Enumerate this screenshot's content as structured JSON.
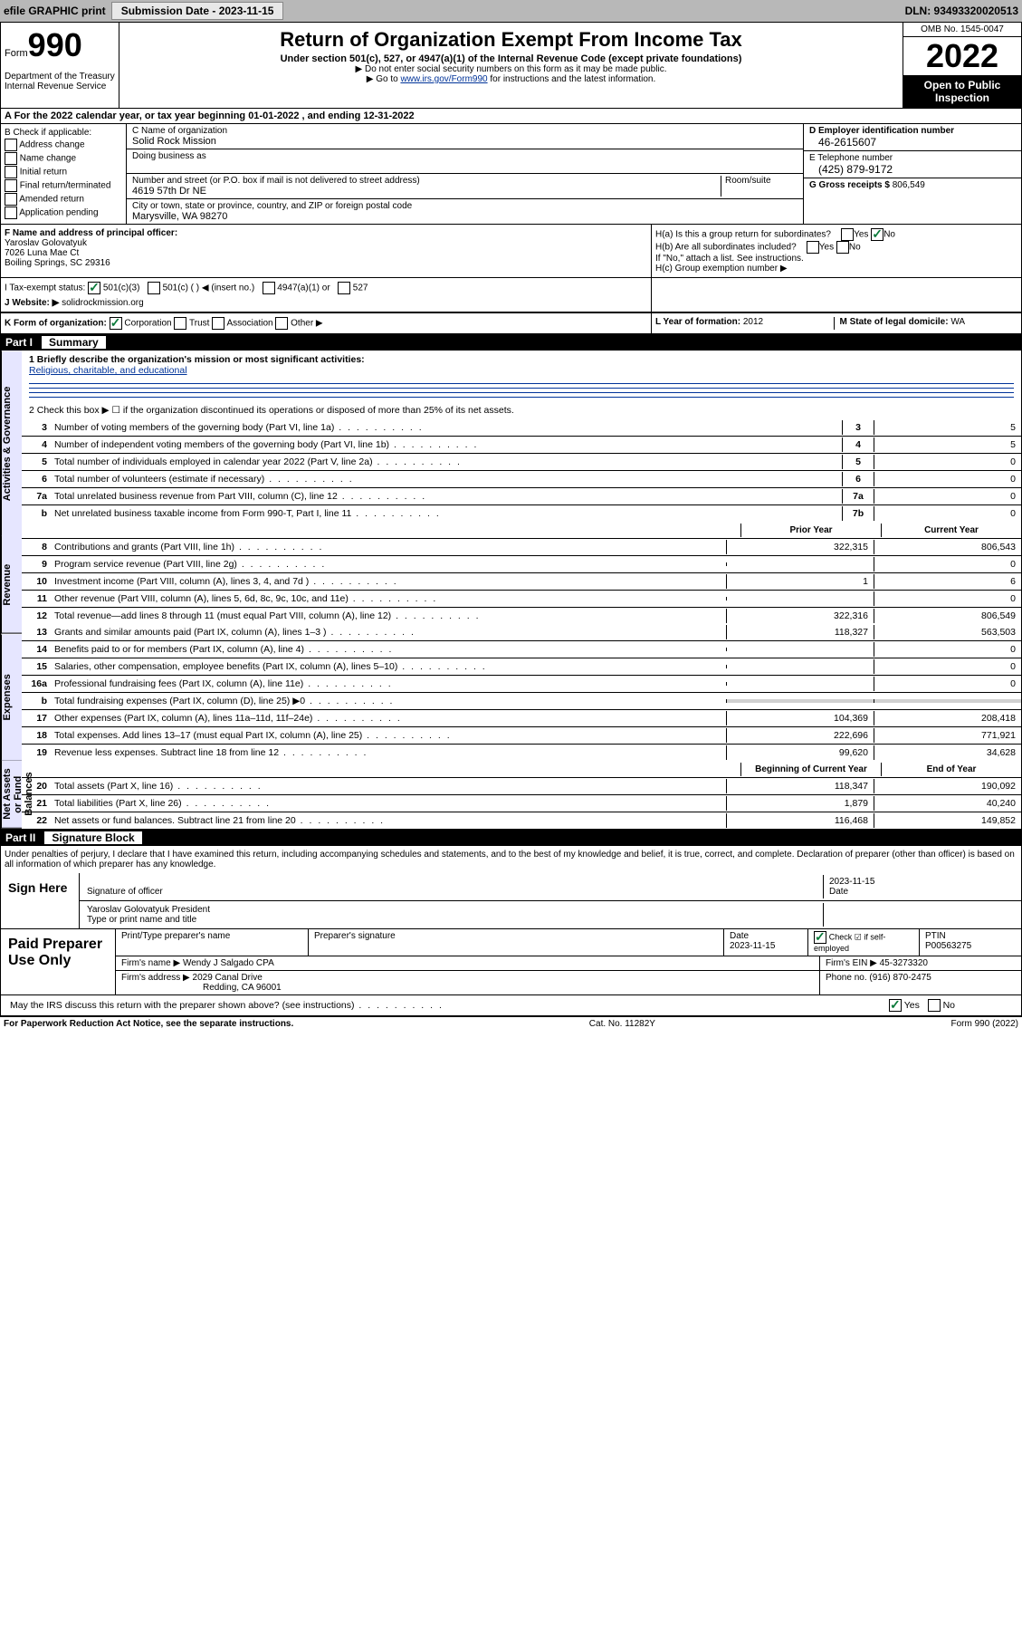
{
  "topbar": {
    "efile_label": "efile GRAPHIC print",
    "submission_label": "Submission Date - 2023-11-15",
    "dln_label": "DLN: 93493320020513"
  },
  "header": {
    "form_prefix": "Form",
    "form_number": "990",
    "title": "Return of Organization Exempt From Income Tax",
    "subtitle": "Under section 501(c), 527, or 4947(a)(1) of the Internal Revenue Code (except private foundations)",
    "note1": "▶ Do not enter social security numbers on this form as it may be made public.",
    "note2_pre": "▶ Go to ",
    "note2_link": "www.irs.gov/Form990",
    "note2_post": " for instructions and the latest information.",
    "omb": "OMB No. 1545-0047",
    "year": "2022",
    "inspection": "Open to Public Inspection",
    "dept": "Department of the Treasury Internal Revenue Service"
  },
  "sectionA": {
    "text": "A  For the 2022 calendar year, or tax year beginning 01-01-2022   , and ending 12-31-2022"
  },
  "boxB": {
    "label": "B Check if applicable:",
    "items": [
      "Address change",
      "Name change",
      "Initial return",
      "Final return/terminated",
      "Amended return",
      "Application pending"
    ]
  },
  "boxC": {
    "name_label": "C Name of organization",
    "name": "Solid Rock Mission",
    "dba_label": "Doing business as",
    "dba": "",
    "addr_label": "Number and street (or P.O. box if mail is not delivered to street address)",
    "addr": "4619 57th Dr NE",
    "suite_label": "Room/suite",
    "city_label": "City or town, state or province, country, and ZIP or foreign postal code",
    "city": "Marysville, WA  98270"
  },
  "boxD": {
    "ein_label": "D Employer identification number",
    "ein": "46-2615607",
    "phone_label": "E Telephone number",
    "phone": "(425) 879-9172",
    "gross_label": "G Gross receipts $",
    "gross": "806,549"
  },
  "boxF": {
    "label": "F  Name and address of principal officer:",
    "name": "Yaroslav Golovatyuk",
    "addr1": "7026 Luna Mae Ct",
    "addr2": "Boiling Springs, SC  29316"
  },
  "boxH": {
    "ha_label": "H(a)  Is this a group return for subordinates?",
    "hb_label": "H(b)  Are all subordinates included?",
    "hb_note": "If \"No,\" attach a list. See instructions.",
    "hc_label": "H(c)  Group exemption number ▶"
  },
  "boxI": {
    "label": "I     Tax-exempt status:",
    "opt1": "501(c)(3)",
    "opt2": "501(c) (  ) ◀ (insert no.)",
    "opt3": "4947(a)(1) or",
    "opt4": "527"
  },
  "boxJ": {
    "label": "J     Website: ▶",
    "value": "solidrockmission.org"
  },
  "boxK": {
    "label": "K Form of organization:",
    "opts": [
      "Corporation",
      "Trust",
      "Association",
      "Other ▶"
    ]
  },
  "boxL": {
    "label": "L Year of formation:",
    "value": "2012"
  },
  "boxM": {
    "label": "M State of legal domicile:",
    "value": "WA"
  },
  "part1": {
    "label": "Part I",
    "title": "Summary",
    "tabs": [
      "Activities & Governance",
      "Revenue",
      "Expenses",
      "Net Assets or Fund Balances"
    ],
    "q1_label": "1   Briefly describe the organization's mission or most significant activities:",
    "q1_value": "Religious, charitable, and educational",
    "q2": "2     Check this box ▶ ☐  if the organization discontinued its operations or disposed of more than 25% of its net assets.",
    "rows_ag": [
      {
        "n": "3",
        "desc": "Number of voting members of the governing body (Part VI, line 1a)",
        "box": "3",
        "val": "5"
      },
      {
        "n": "4",
        "desc": "Number of independent voting members of the governing body (Part VI, line 1b)",
        "box": "4",
        "val": "5"
      },
      {
        "n": "5",
        "desc": "Total number of individuals employed in calendar year 2022 (Part V, line 2a)",
        "box": "5",
        "val": "0"
      },
      {
        "n": "6",
        "desc": "Total number of volunteers (estimate if necessary)",
        "box": "6",
        "val": "0"
      },
      {
        "n": "7a",
        "desc": "Total unrelated business revenue from Part VIII, column (C), line 12",
        "box": "7a",
        "val": "0"
      },
      {
        "n": "b",
        "desc": "Net unrelated business taxable income from Form 990-T, Part I, line 11",
        "box": "7b",
        "val": "0"
      }
    ],
    "col_headers": {
      "prior": "Prior Year",
      "current": "Current Year",
      "boy": "Beginning of Current Year",
      "eoy": "End of Year"
    },
    "rows_rev": [
      {
        "n": "8",
        "desc": "Contributions and grants (Part VIII, line 1h)",
        "p": "322,315",
        "c": "806,543"
      },
      {
        "n": "9",
        "desc": "Program service revenue (Part VIII, line 2g)",
        "p": "",
        "c": "0"
      },
      {
        "n": "10",
        "desc": "Investment income (Part VIII, column (A), lines 3, 4, and 7d )",
        "p": "1",
        "c": "6"
      },
      {
        "n": "11",
        "desc": "Other revenue (Part VIII, column (A), lines 5, 6d, 8c, 9c, 10c, and 11e)",
        "p": "",
        "c": "0"
      },
      {
        "n": "12",
        "desc": "Total revenue—add lines 8 through 11 (must equal Part VIII, column (A), line 12)",
        "p": "322,316",
        "c": "806,549"
      }
    ],
    "rows_exp": [
      {
        "n": "13",
        "desc": "Grants and similar amounts paid (Part IX, column (A), lines 1–3 )",
        "p": "118,327",
        "c": "563,503"
      },
      {
        "n": "14",
        "desc": "Benefits paid to or for members (Part IX, column (A), line 4)",
        "p": "",
        "c": "0"
      },
      {
        "n": "15",
        "desc": "Salaries, other compensation, employee benefits (Part IX, column (A), lines 5–10)",
        "p": "",
        "c": "0"
      },
      {
        "n": "16a",
        "desc": "Professional fundraising fees (Part IX, column (A), line 11e)",
        "p": "",
        "c": "0"
      },
      {
        "n": "b",
        "desc": "Total fundraising expenses (Part IX, column (D), line 25) ▶0",
        "p": "grey",
        "c": "grey"
      },
      {
        "n": "17",
        "desc": "Other expenses (Part IX, column (A), lines 11a–11d, 11f–24e)",
        "p": "104,369",
        "c": "208,418"
      },
      {
        "n": "18",
        "desc": "Total expenses. Add lines 13–17 (must equal Part IX, column (A), line 25)",
        "p": "222,696",
        "c": "771,921"
      },
      {
        "n": "19",
        "desc": "Revenue less expenses. Subtract line 18 from line 12",
        "p": "99,620",
        "c": "34,628"
      }
    ],
    "rows_na": [
      {
        "n": "20",
        "desc": "Total assets (Part X, line 16)",
        "p": "118,347",
        "c": "190,092"
      },
      {
        "n": "21",
        "desc": "Total liabilities (Part X, line 26)",
        "p": "1,879",
        "c": "40,240"
      },
      {
        "n": "22",
        "desc": "Net assets or fund balances. Subtract line 21 from line 20",
        "p": "116,468",
        "c": "149,852"
      }
    ]
  },
  "part2": {
    "label": "Part II",
    "title": "Signature Block",
    "penalty": "Under penalties of perjury, I declare that I have examined this return, including accompanying schedules and statements, and to the best of my knowledge and belief, it is true, correct, and complete. Declaration of preparer (other than officer) is based on all information of which preparer has any knowledge.",
    "sign_here": "Sign Here",
    "sig_officer_label": "Signature of officer",
    "sig_date": "2023-11-15",
    "date_label": "Date",
    "officer_name": "Yaroslav Golovatyuk  President",
    "officer_type_label": "Type or print name and title",
    "paid_label": "Paid Preparer Use Only",
    "prep_header": [
      "Print/Type preparer's name",
      "Preparer's signature",
      "Date",
      "",
      "PTIN"
    ],
    "prep_date": "2023-11-15",
    "prep_check": "Check ☑ if self-employed",
    "ptin": "P00563275",
    "firm_name_label": "Firm's name    ▶",
    "firm_name": "Wendy J Salgado CPA",
    "firm_ein_label": "Firm's EIN ▶",
    "firm_ein": "45-3273320",
    "firm_addr_label": "Firm's address ▶",
    "firm_addr1": "2029 Canal Drive",
    "firm_addr2": "Redding, CA  96001",
    "firm_phone_label": "Phone no.",
    "firm_phone": "(916) 870-2475",
    "discuss": "May the IRS discuss this return with the preparer shown above? (see instructions)",
    "yes": "Yes",
    "no": "No"
  },
  "footer": {
    "left": "For Paperwork Reduction Act Notice, see the separate instructions.",
    "mid": "Cat. No. 11282Y",
    "right": "Form 990 (2022)"
  }
}
